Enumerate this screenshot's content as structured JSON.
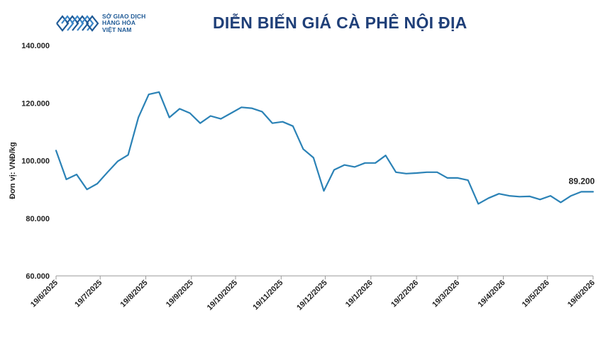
{
  "logo": {
    "name": "sogiaodich-hanghoa-logo-icon",
    "line1": "SỞ GIAO DỊCH",
    "line2": "HÀNG HÓA",
    "line3": "VIỆT NAM"
  },
  "colors": {
    "line": "#2b82b6",
    "title": "#1f3f78",
    "axis": "#9a9a9a",
    "logo": "#1f5a96"
  },
  "chart_data": {
    "type": "line",
    "title": "DIỄN BIẾN GIÁ CÀ PHÊ NỘI ĐỊA",
    "xlabel": "",
    "ylabel": "Đơn vị: VNĐ/kg",
    "ylim": [
      60000,
      140000
    ],
    "yticks": [
      60000,
      80000,
      100000,
      120000,
      140000
    ],
    "ytick_labels": [
      "60.000",
      "80.000",
      "100.000",
      "120.000",
      "140.000"
    ],
    "xlim": [
      "2025-06-19",
      "2026-06-19"
    ],
    "xticks": [
      "2025-06-19",
      "2025-07-19",
      "2025-08-19",
      "2025-09-19",
      "2025-10-19",
      "2025-11-19",
      "2025-12-19",
      "2026-01-19",
      "2026-02-19",
      "2026-03-19",
      "2026-04-19",
      "2026-05-19",
      "2026-06-19"
    ],
    "xtick_labels": [
      "19/6/2025",
      "19/7/2025",
      "19/8/2025",
      "19/9/2025",
      "19/10/2025",
      "19/11/2025",
      "19/12/2025",
      "19/1/2026",
      "19/2/2026",
      "19/3/2026",
      "19/4/2026",
      "19/5/2026",
      "19/6/2026"
    ],
    "grid": false,
    "legend": "none",
    "series": [
      {
        "x": [
          "2025-06-19",
          "2025-06-26",
          "2025-07-03",
          "2025-07-10",
          "2025-07-17",
          "2025-07-24",
          "2025-07-31",
          "2025-08-07",
          "2025-08-14",
          "2025-08-21",
          "2025-08-28",
          "2025-09-04",
          "2025-09-11",
          "2025-09-18",
          "2025-09-25",
          "2025-10-02",
          "2025-10-09",
          "2025-10-16",
          "2025-10-23",
          "2025-10-30",
          "2025-11-06",
          "2025-11-13",
          "2025-11-20",
          "2025-11-27",
          "2025-12-04",
          "2025-12-11",
          "2025-12-18",
          "2025-12-25",
          "2026-01-01",
          "2026-01-08",
          "2026-01-15",
          "2026-01-22",
          "2026-01-29",
          "2026-02-05",
          "2026-02-12",
          "2026-02-19",
          "2026-02-26",
          "2026-03-05",
          "2026-03-12",
          "2026-03-19",
          "2026-03-26",
          "2026-04-02",
          "2026-04-09",
          "2026-04-16",
          "2026-04-23",
          "2026-04-30",
          "2026-05-07",
          "2026-05-14",
          "2026-05-21",
          "2026-05-28",
          "2026-06-04",
          "2026-06-11",
          "2026-06-19"
        ],
        "y": [
          103500,
          93500,
          95200,
          90000,
          92000,
          96000,
          99800,
          102000,
          115000,
          123000,
          123800,
          115000,
          118000,
          116500,
          113000,
          115500,
          114500,
          116500,
          118500,
          118200,
          117000,
          113000,
          113500,
          112000,
          104000,
          101000,
          89500,
          96800,
          98500,
          97800,
          99200,
          99200,
          101800,
          96000,
          95500,
          95700,
          96000,
          96000,
          94000,
          94000,
          93200,
          85000,
          87000,
          88500,
          87800,
          87500,
          87600,
          86500,
          87800,
          85500,
          87800,
          89200,
          89200
        ]
      }
    ],
    "annotations": [
      {
        "x": "2026-06-19",
        "y": 89200,
        "text": "89.200"
      }
    ]
  }
}
